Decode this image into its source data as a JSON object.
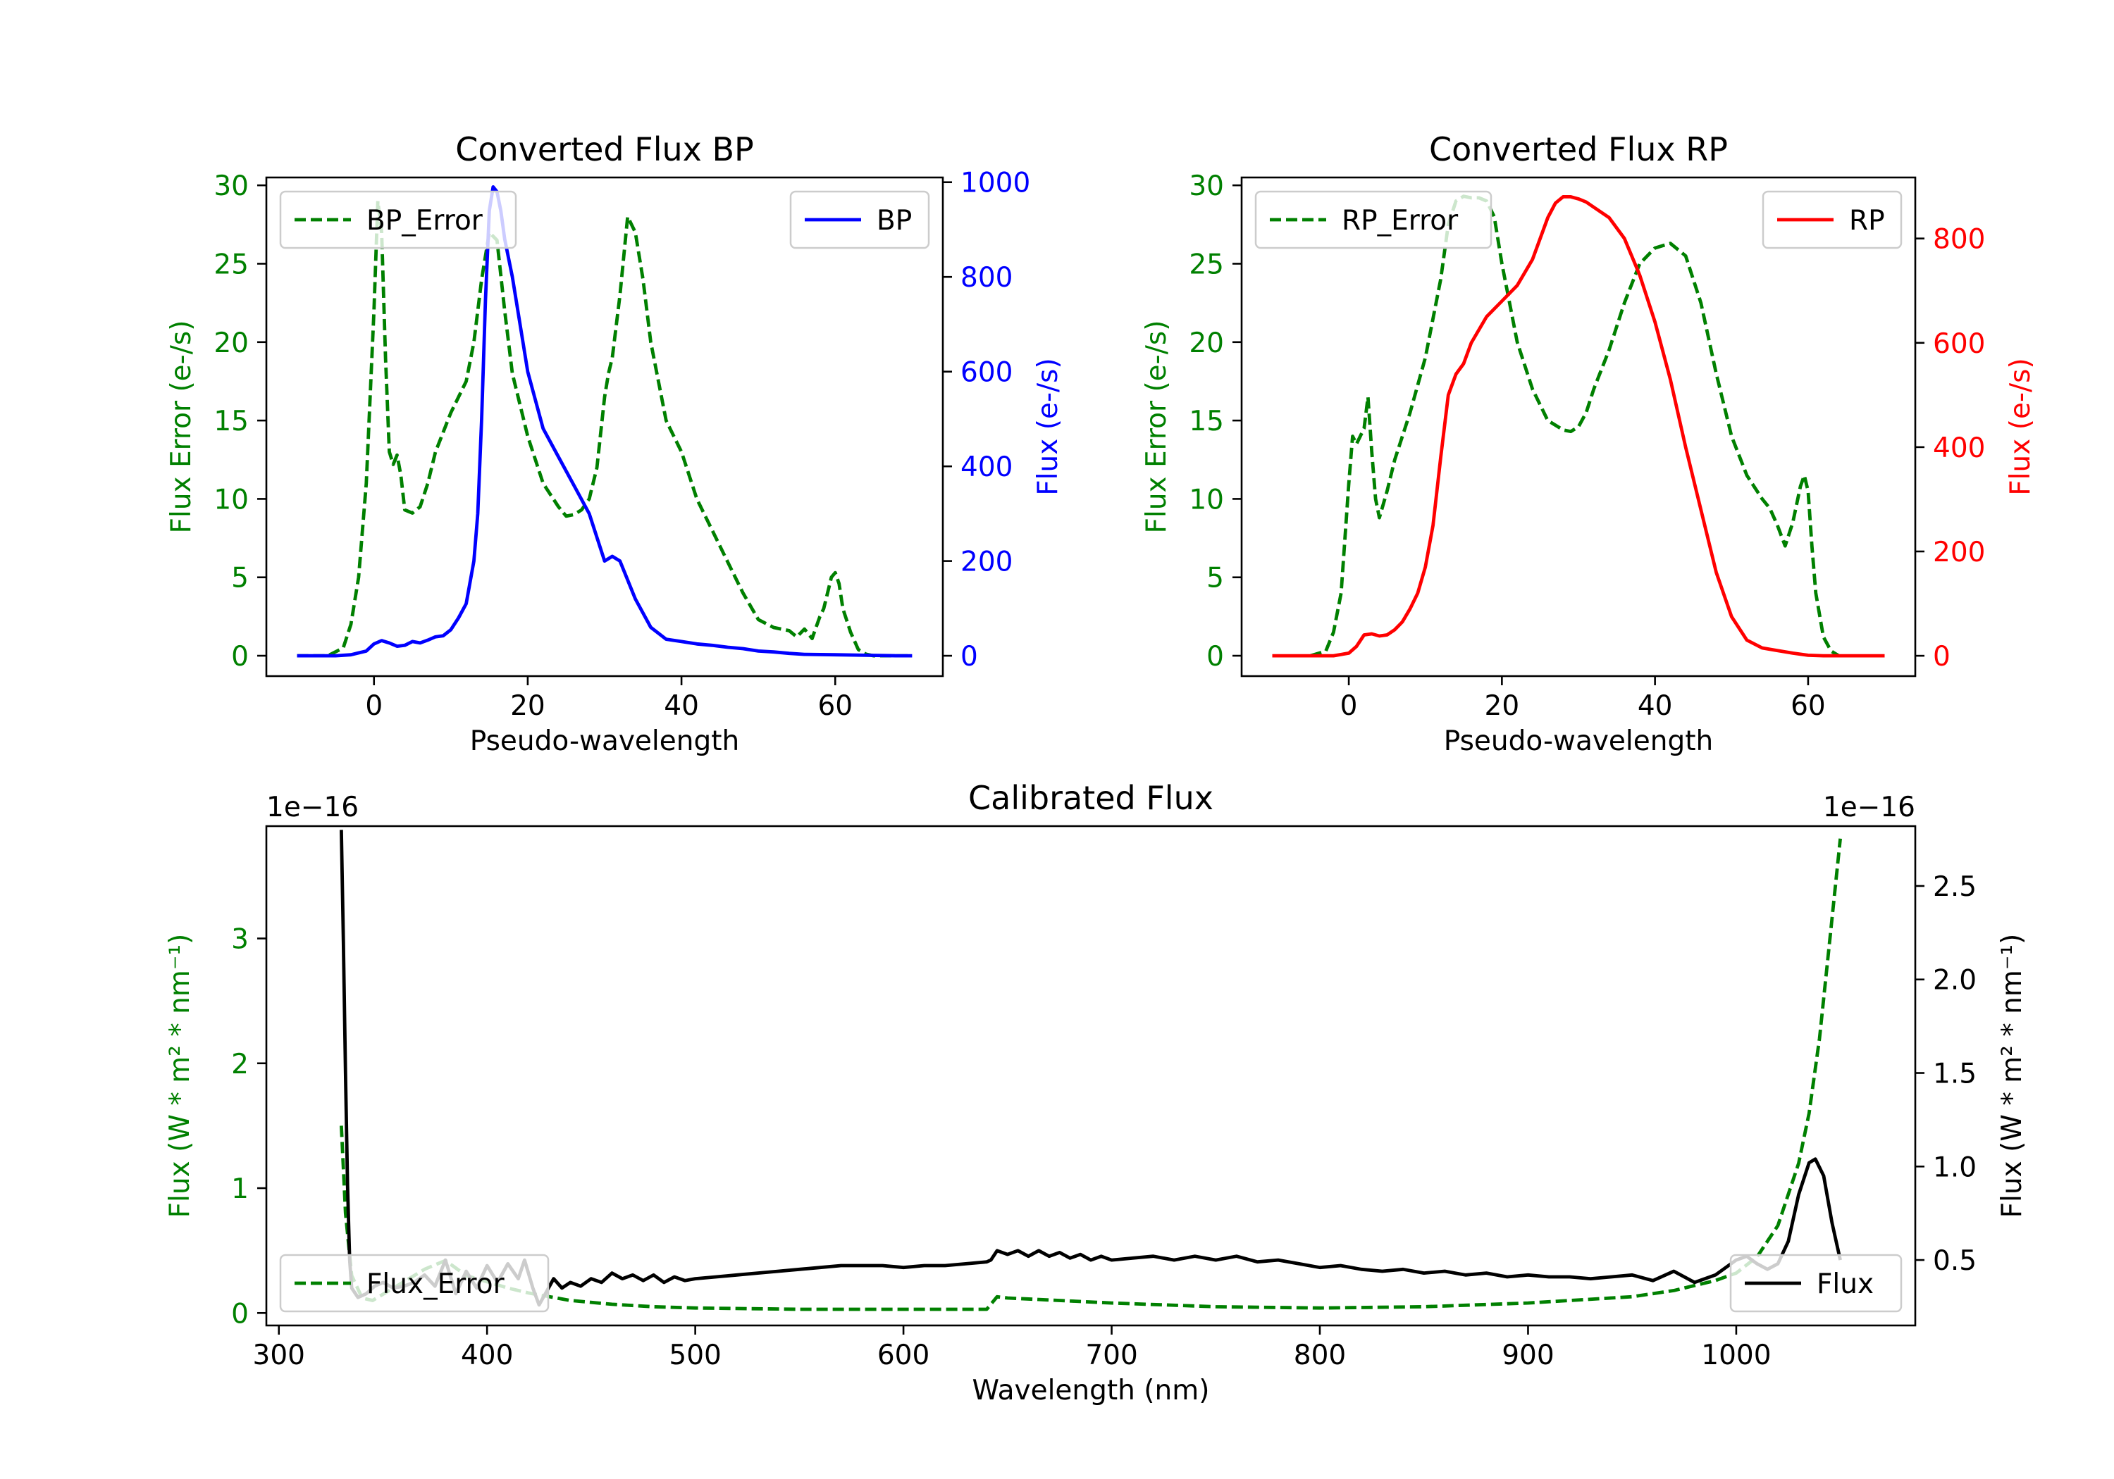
{
  "colors": {
    "error": "#008000",
    "bp": "#0000ff",
    "rp": "#ff0000",
    "flux": "#000000",
    "axis": "#000000"
  },
  "chart_data": [
    {
      "id": "bp",
      "type": "line",
      "title": "Converted Flux BP",
      "xlabel": "Pseudo-wavelength",
      "ylabel_left": "Flux Error (e-/s)",
      "ylabel_right": "Flux (e-/s)",
      "xlim": [
        -14,
        74
      ],
      "ylim_left": [
        -1.3,
        30.5
      ],
      "ylim_right": [
        -43,
        1010
      ],
      "xticks": [
        0,
        20,
        40,
        60
      ],
      "yticks_left": [
        0,
        5,
        10,
        15,
        20,
        25,
        30
      ],
      "yticks_right": [
        0,
        200,
        400,
        600,
        800,
        1000
      ],
      "legend_left": "top-left",
      "legend_right": "top-right",
      "series": [
        {
          "name": "BP_Error",
          "axis": "left",
          "style": "dashed",
          "color_key": "error",
          "x": [
            -10,
            -6,
            -4,
            -3,
            -2,
            -1,
            0,
            0.5,
            1,
            1.5,
            2,
            2.5,
            3,
            3.5,
            4,
            5,
            6,
            7,
            8,
            10,
            12,
            13,
            14,
            15,
            16,
            17,
            18,
            20,
            22,
            24,
            25,
            26,
            27,
            28,
            29,
            30,
            30.5,
            31,
            32,
            33,
            34,
            35,
            36,
            38,
            40,
            42,
            44,
            46,
            48,
            50,
            52,
            54,
            55,
            56,
            57,
            58,
            58.5,
            59,
            59.5,
            60,
            60.5,
            61,
            62,
            63,
            64,
            65,
            70
          ],
          "y": [
            0,
            0,
            0.5,
            2,
            5,
            11,
            22,
            29,
            27,
            19,
            13,
            12.2,
            12.8,
            11.5,
            9.3,
            9.1,
            9.5,
            11,
            13,
            15.5,
            17.5,
            20,
            24,
            27,
            26.5,
            22,
            18,
            14,
            11,
            9.5,
            8.9,
            9,
            9.3,
            10,
            12,
            16.5,
            18,
            19,
            23,
            28,
            27,
            24,
            20,
            15,
            13,
            10,
            8,
            6,
            4,
            2.3,
            1.8,
            1.6,
            1.2,
            1.7,
            1.1,
            2.5,
            3,
            4,
            5,
            5.3,
            4.6,
            3,
            1.5,
            0.4,
            0.1,
            0,
            0
          ]
        },
        {
          "name": "BP",
          "axis": "right",
          "style": "solid",
          "color_key": "bp",
          "x": [
            -10,
            -5,
            -3,
            -1,
            0,
            1,
            2,
            3,
            4,
            5,
            6,
            7,
            8,
            9,
            10,
            11,
            12,
            13,
            13.5,
            14,
            14.5,
            15,
            15.5,
            16,
            16.5,
            17,
            18,
            19,
            20,
            22,
            24,
            26,
            28,
            30,
            31,
            32,
            33,
            34,
            36,
            38,
            40,
            42,
            44,
            46,
            48,
            50,
            52,
            54,
            56,
            60,
            64,
            68,
            70
          ],
          "y": [
            0,
            0,
            2,
            10,
            25,
            32,
            27,
            20,
            22,
            30,
            27,
            33,
            40,
            42,
            55,
            80,
            110,
            200,
            300,
            500,
            750,
            940,
            990,
            980,
            940,
            880,
            800,
            700,
            600,
            480,
            420,
            360,
            300,
            200,
            210,
            200,
            160,
            120,
            60,
            35,
            30,
            25,
            22,
            18,
            15,
            10,
            8,
            5,
            3,
            2,
            1,
            0,
            0
          ]
        }
      ]
    },
    {
      "id": "rp",
      "type": "line",
      "title": "Converted Flux RP",
      "xlabel": "Pseudo-wavelength",
      "ylabel_left": "Flux Error (e-/s)",
      "ylabel_right": "Flux (e-/s)",
      "xlim": [
        -14,
        74
      ],
      "ylim_left": [
        -1.3,
        30.5
      ],
      "ylim_right": [
        -39,
        917
      ],
      "xticks": [
        0,
        20,
        40,
        60
      ],
      "yticks_left": [
        0,
        5,
        10,
        15,
        20,
        25,
        30
      ],
      "yticks_right": [
        0,
        200,
        400,
        600,
        800
      ],
      "legend_left": "top-left",
      "legend_right": "top-right",
      "series": [
        {
          "name": "RP_Error",
          "axis": "left",
          "style": "dashed",
          "color_key": "error",
          "x": [
            -5,
            -3,
            -2,
            -1,
            0,
            0.5,
            1,
            2,
            2.5,
            3,
            3.5,
            4,
            5,
            6,
            8,
            10,
            12,
            13,
            14,
            15,
            16,
            17,
            18,
            19,
            20,
            22,
            24,
            26,
            28,
            29,
            30,
            31,
            32,
            34,
            36,
            38,
            40,
            42,
            44,
            46,
            48,
            50,
            52,
            54,
            55,
            56,
            57,
            58,
            59,
            59.5,
            60,
            60.5,
            61,
            62,
            63,
            64
          ],
          "y": [
            0,
            0.3,
            1.5,
            4,
            11,
            14,
            13.5,
            14.5,
            16.5,
            13,
            10,
            8.8,
            10.5,
            12.5,
            15.5,
            19,
            24,
            27.5,
            29,
            29.3,
            29.2,
            29.2,
            29,
            28,
            25,
            20,
            17,
            15,
            14.4,
            14.3,
            14.6,
            15.5,
            17,
            19.5,
            22.5,
            25,
            26,
            26.3,
            25.5,
            22.5,
            18,
            14,
            11.5,
            10,
            9.4,
            8.3,
            7,
            8.5,
            10.8,
            11.5,
            10.5,
            7,
            4,
            1.2,
            0.3,
            0
          ]
        },
        {
          "name": "RP",
          "axis": "right",
          "style": "solid",
          "color_key": "rp",
          "x": [
            -10,
            -4,
            -2,
            0,
            1,
            2,
            3,
            4,
            5,
            6,
            7,
            8,
            9,
            10,
            11,
            12,
            13,
            14,
            15,
            16,
            18,
            20,
            22,
            24,
            26,
            27,
            28,
            29,
            30,
            31,
            32,
            34,
            36,
            38,
            40,
            42,
            44,
            46,
            48,
            50,
            52,
            54,
            56,
            58,
            59,
            60,
            62,
            64,
            66,
            70
          ],
          "y": [
            0,
            0,
            0,
            5,
            18,
            40,
            42,
            38,
            40,
            50,
            65,
            90,
            120,
            170,
            250,
            380,
            500,
            540,
            560,
            600,
            650,
            680,
            710,
            760,
            840,
            868,
            880,
            880,
            876,
            870,
            860,
            840,
            800,
            730,
            640,
            530,
            400,
            280,
            160,
            75,
            30,
            15,
            10,
            5,
            3,
            1,
            0,
            0,
            0,
            0
          ]
        }
      ]
    },
    {
      "id": "calibrated",
      "type": "line",
      "title": "Calibrated Flux",
      "xlabel": "Wavelength (nm)",
      "ylabel_left": "Flux (W * m² * nm⁻¹)",
      "ylabel_right": "Flux (W * m² * nm⁻¹)",
      "offset_text_left": "1e−16",
      "offset_text_right": "1e−16",
      "xlim": [
        294,
        1086
      ],
      "ylim_left": [
        -0.1,
        3.9
      ],
      "ylim_right": [
        0.15,
        2.82
      ],
      "xticks": [
        300,
        400,
        500,
        600,
        700,
        800,
        900,
        1000
      ],
      "yticks_left": [
        0,
        1,
        2,
        3
      ],
      "yticks_right": [
        0.5,
        1.0,
        1.5,
        2.0,
        2.5
      ],
      "legend_left": "bottom-left",
      "legend_right": "bottom-right",
      "series": [
        {
          "name": "Flux_Error",
          "axis": "left",
          "style": "dashed",
          "color_key": "error",
          "x": [
            330,
            332,
            335,
            340,
            345,
            350,
            360,
            370,
            380,
            385,
            390,
            400,
            410,
            420,
            430,
            440,
            460,
            480,
            500,
            550,
            600,
            640,
            645,
            650,
            700,
            750,
            800,
            850,
            900,
            950,
            970,
            980,
            990,
            1000,
            1010,
            1020,
            1030,
            1035,
            1040,
            1045,
            1050
          ],
          "y": [
            1.5,
            0.8,
            0.3,
            0.12,
            0.1,
            0.15,
            0.25,
            0.35,
            0.42,
            0.36,
            0.3,
            0.25,
            0.2,
            0.16,
            0.13,
            0.1,
            0.07,
            0.05,
            0.04,
            0.03,
            0.03,
            0.03,
            0.13,
            0.12,
            0.08,
            0.05,
            0.04,
            0.05,
            0.08,
            0.13,
            0.18,
            0.22,
            0.26,
            0.32,
            0.45,
            0.7,
            1.2,
            1.6,
            2.2,
            3.0,
            3.8
          ]
        },
        {
          "name": "Flux",
          "axis": "right",
          "style": "solid",
          "color_key": "flux",
          "x": [
            330,
            331,
            332,
            333,
            334,
            335,
            338,
            342,
            346,
            350,
            355,
            360,
            365,
            370,
            375,
            380,
            385,
            390,
            395,
            400,
            405,
            410,
            415,
            418,
            422,
            425,
            428,
            432,
            436,
            440,
            445,
            450,
            455,
            460,
            465,
            470,
            475,
            480,
            485,
            490,
            495,
            500,
            510,
            520,
            530,
            540,
            550,
            560,
            570,
            580,
            590,
            600,
            610,
            620,
            630,
            640,
            642,
            645,
            650,
            655,
            660,
            665,
            670,
            675,
            680,
            685,
            690,
            695,
            700,
            710,
            720,
            730,
            740,
            750,
            760,
            770,
            780,
            790,
            800,
            810,
            820,
            830,
            840,
            850,
            860,
            870,
            880,
            890,
            900,
            910,
            920,
            930,
            940,
            950,
            960,
            970,
            980,
            990,
            1000,
            1005,
            1010,
            1015,
            1020,
            1025,
            1030,
            1035,
            1038,
            1042,
            1046,
            1050
          ],
          "y": [
            2.8,
            2.2,
            1.5,
            0.9,
            0.5,
            0.35,
            0.3,
            0.32,
            0.36,
            0.38,
            0.35,
            0.36,
            0.38,
            0.42,
            0.36,
            0.5,
            0.32,
            0.44,
            0.35,
            0.47,
            0.38,
            0.48,
            0.4,
            0.5,
            0.35,
            0.26,
            0.32,
            0.4,
            0.35,
            0.38,
            0.36,
            0.4,
            0.38,
            0.43,
            0.4,
            0.42,
            0.39,
            0.42,
            0.38,
            0.41,
            0.39,
            0.4,
            0.41,
            0.42,
            0.43,
            0.44,
            0.45,
            0.46,
            0.47,
            0.47,
            0.47,
            0.46,
            0.47,
            0.47,
            0.48,
            0.49,
            0.5,
            0.55,
            0.53,
            0.55,
            0.52,
            0.55,
            0.52,
            0.54,
            0.51,
            0.53,
            0.5,
            0.52,
            0.5,
            0.51,
            0.52,
            0.5,
            0.52,
            0.5,
            0.52,
            0.49,
            0.5,
            0.48,
            0.46,
            0.47,
            0.45,
            0.44,
            0.45,
            0.43,
            0.44,
            0.42,
            0.43,
            0.41,
            0.42,
            0.41,
            0.41,
            0.4,
            0.41,
            0.42,
            0.39,
            0.44,
            0.38,
            0.42,
            0.5,
            0.52,
            0.48,
            0.45,
            0.48,
            0.6,
            0.85,
            1.02,
            1.04,
            0.95,
            0.7,
            0.5
          ]
        }
      ]
    }
  ]
}
